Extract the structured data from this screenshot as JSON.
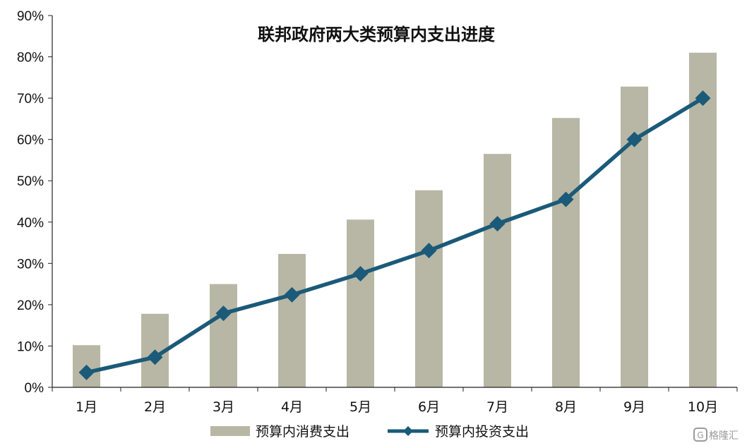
{
  "chart_data": {
    "type": "bar",
    "title": "联邦政府两大类预算内支出进度",
    "xlabel": "",
    "ylabel": "",
    "categories": [
      "1月",
      "2月",
      "3月",
      "4月",
      "5月",
      "6月",
      "7月",
      "8月",
      "9月",
      "10月"
    ],
    "y_ticks": [
      "0%",
      "10%",
      "20%",
      "30%",
      "40%",
      "50%",
      "60%",
      "70%",
      "80%",
      "90%"
    ],
    "ylim": [
      0,
      90
    ],
    "y_unit": "%",
    "grid": false,
    "legend_position": "bottom",
    "series": [
      {
        "name": "预算内消费支出",
        "type": "bar",
        "color": "#b8b7a5",
        "values": [
          10.2,
          17.8,
          25.0,
          32.3,
          40.6,
          47.7,
          56.5,
          65.2,
          72.8,
          81.0
        ]
      },
      {
        "name": "预算内投资支出",
        "type": "line",
        "marker": "diamond",
        "color": "#1b5a78",
        "values": [
          3.6,
          7.3,
          17.9,
          22.4,
          27.5,
          33.1,
          39.6,
          45.5,
          60.0,
          70.0
        ]
      }
    ]
  },
  "watermark": {
    "text": "格隆汇",
    "icon": "g-logo-icon"
  }
}
